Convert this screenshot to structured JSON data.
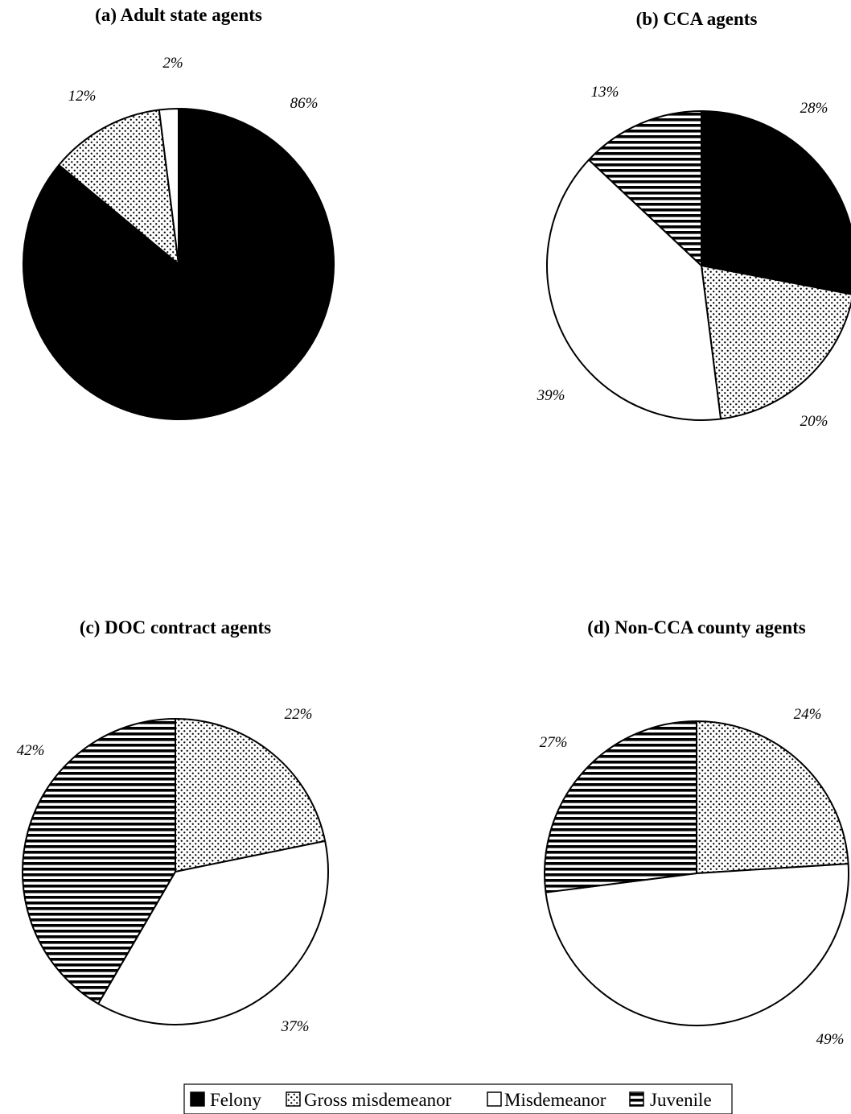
{
  "chart_data": [
    {
      "type": "pie",
      "title": "(a) Adult state agents",
      "categories": [
        "Felony",
        "Gross misdemeanor",
        "Misdemeanor",
        "Juvenile"
      ],
      "values": [
        86,
        12,
        2,
        0
      ],
      "labels": [
        "86%",
        "12%",
        "2%",
        ""
      ]
    },
    {
      "type": "pie",
      "title": "(b) CCA agents",
      "categories": [
        "Felony",
        "Gross misdemeanor",
        "Misdemeanor",
        "Juvenile"
      ],
      "values": [
        28,
        20,
        39,
        13
      ],
      "labels": [
        "28%",
        "20%",
        "39%",
        "13%"
      ]
    },
    {
      "type": "pie",
      "title": "(c) DOC contract agents",
      "categories": [
        "Felony",
        "Gross misdemeanor",
        "Misdemeanor",
        "Juvenile"
      ],
      "values": [
        0,
        22,
        37,
        42
      ],
      "labels": [
        "",
        "22%",
        "37%",
        "42%"
      ]
    },
    {
      "type": "pie",
      "title": "(d) Non-CCA county agents",
      "categories": [
        "Felony",
        "Gross misdemeanor",
        "Misdemeanor",
        "Juvenile"
      ],
      "values": [
        0,
        24,
        49,
        27
      ],
      "labels": [
        "",
        "24%",
        "49%",
        "27%"
      ]
    }
  ],
  "legend": {
    "items": [
      {
        "label": "Felony",
        "fill": "solid"
      },
      {
        "label": "Gross misdemeanor",
        "fill": "dots"
      },
      {
        "label": "Misdemeanor",
        "fill": "white"
      },
      {
        "label": "Juvenile",
        "fill": "stripes"
      }
    ]
  }
}
